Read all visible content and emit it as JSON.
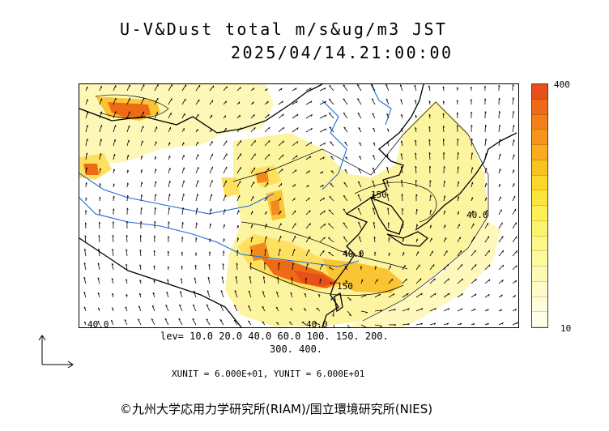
{
  "title": {
    "line1": "U-V&Dust total m/s&ug/m3 JST",
    "line2": "2025/04/14.21:00:00"
  },
  "colorbar": {
    "max_label": "400",
    "min_label": "10",
    "colors": [
      "#e8501a",
      "#ee6a16",
      "#f28018",
      "#f5961c",
      "#f8ac1e",
      "#fac21f",
      "#fcd628",
      "#fde43a",
      "#fdef55",
      "#fdf46e",
      "#fdf785",
      "#fdf99c",
      "#fdfab4",
      "#fefcc8",
      "#fefdda",
      "#fffeea"
    ]
  },
  "levels": {
    "line1": "lev= 10.0 20.0 40.0 60.0 100. 150. 200.",
    "line2": "300. 400."
  },
  "units": "XUNIT = 6.000E+01, YUNIT = 6.000E+01",
  "contour_labels": [
    "150",
    "40.0",
    "40.0",
    "150",
    "40.0",
    "40.0"
  ],
  "copyright": "©九州大学応用力学研究所(RIAM)/国立環境研究所(NIES)"
}
